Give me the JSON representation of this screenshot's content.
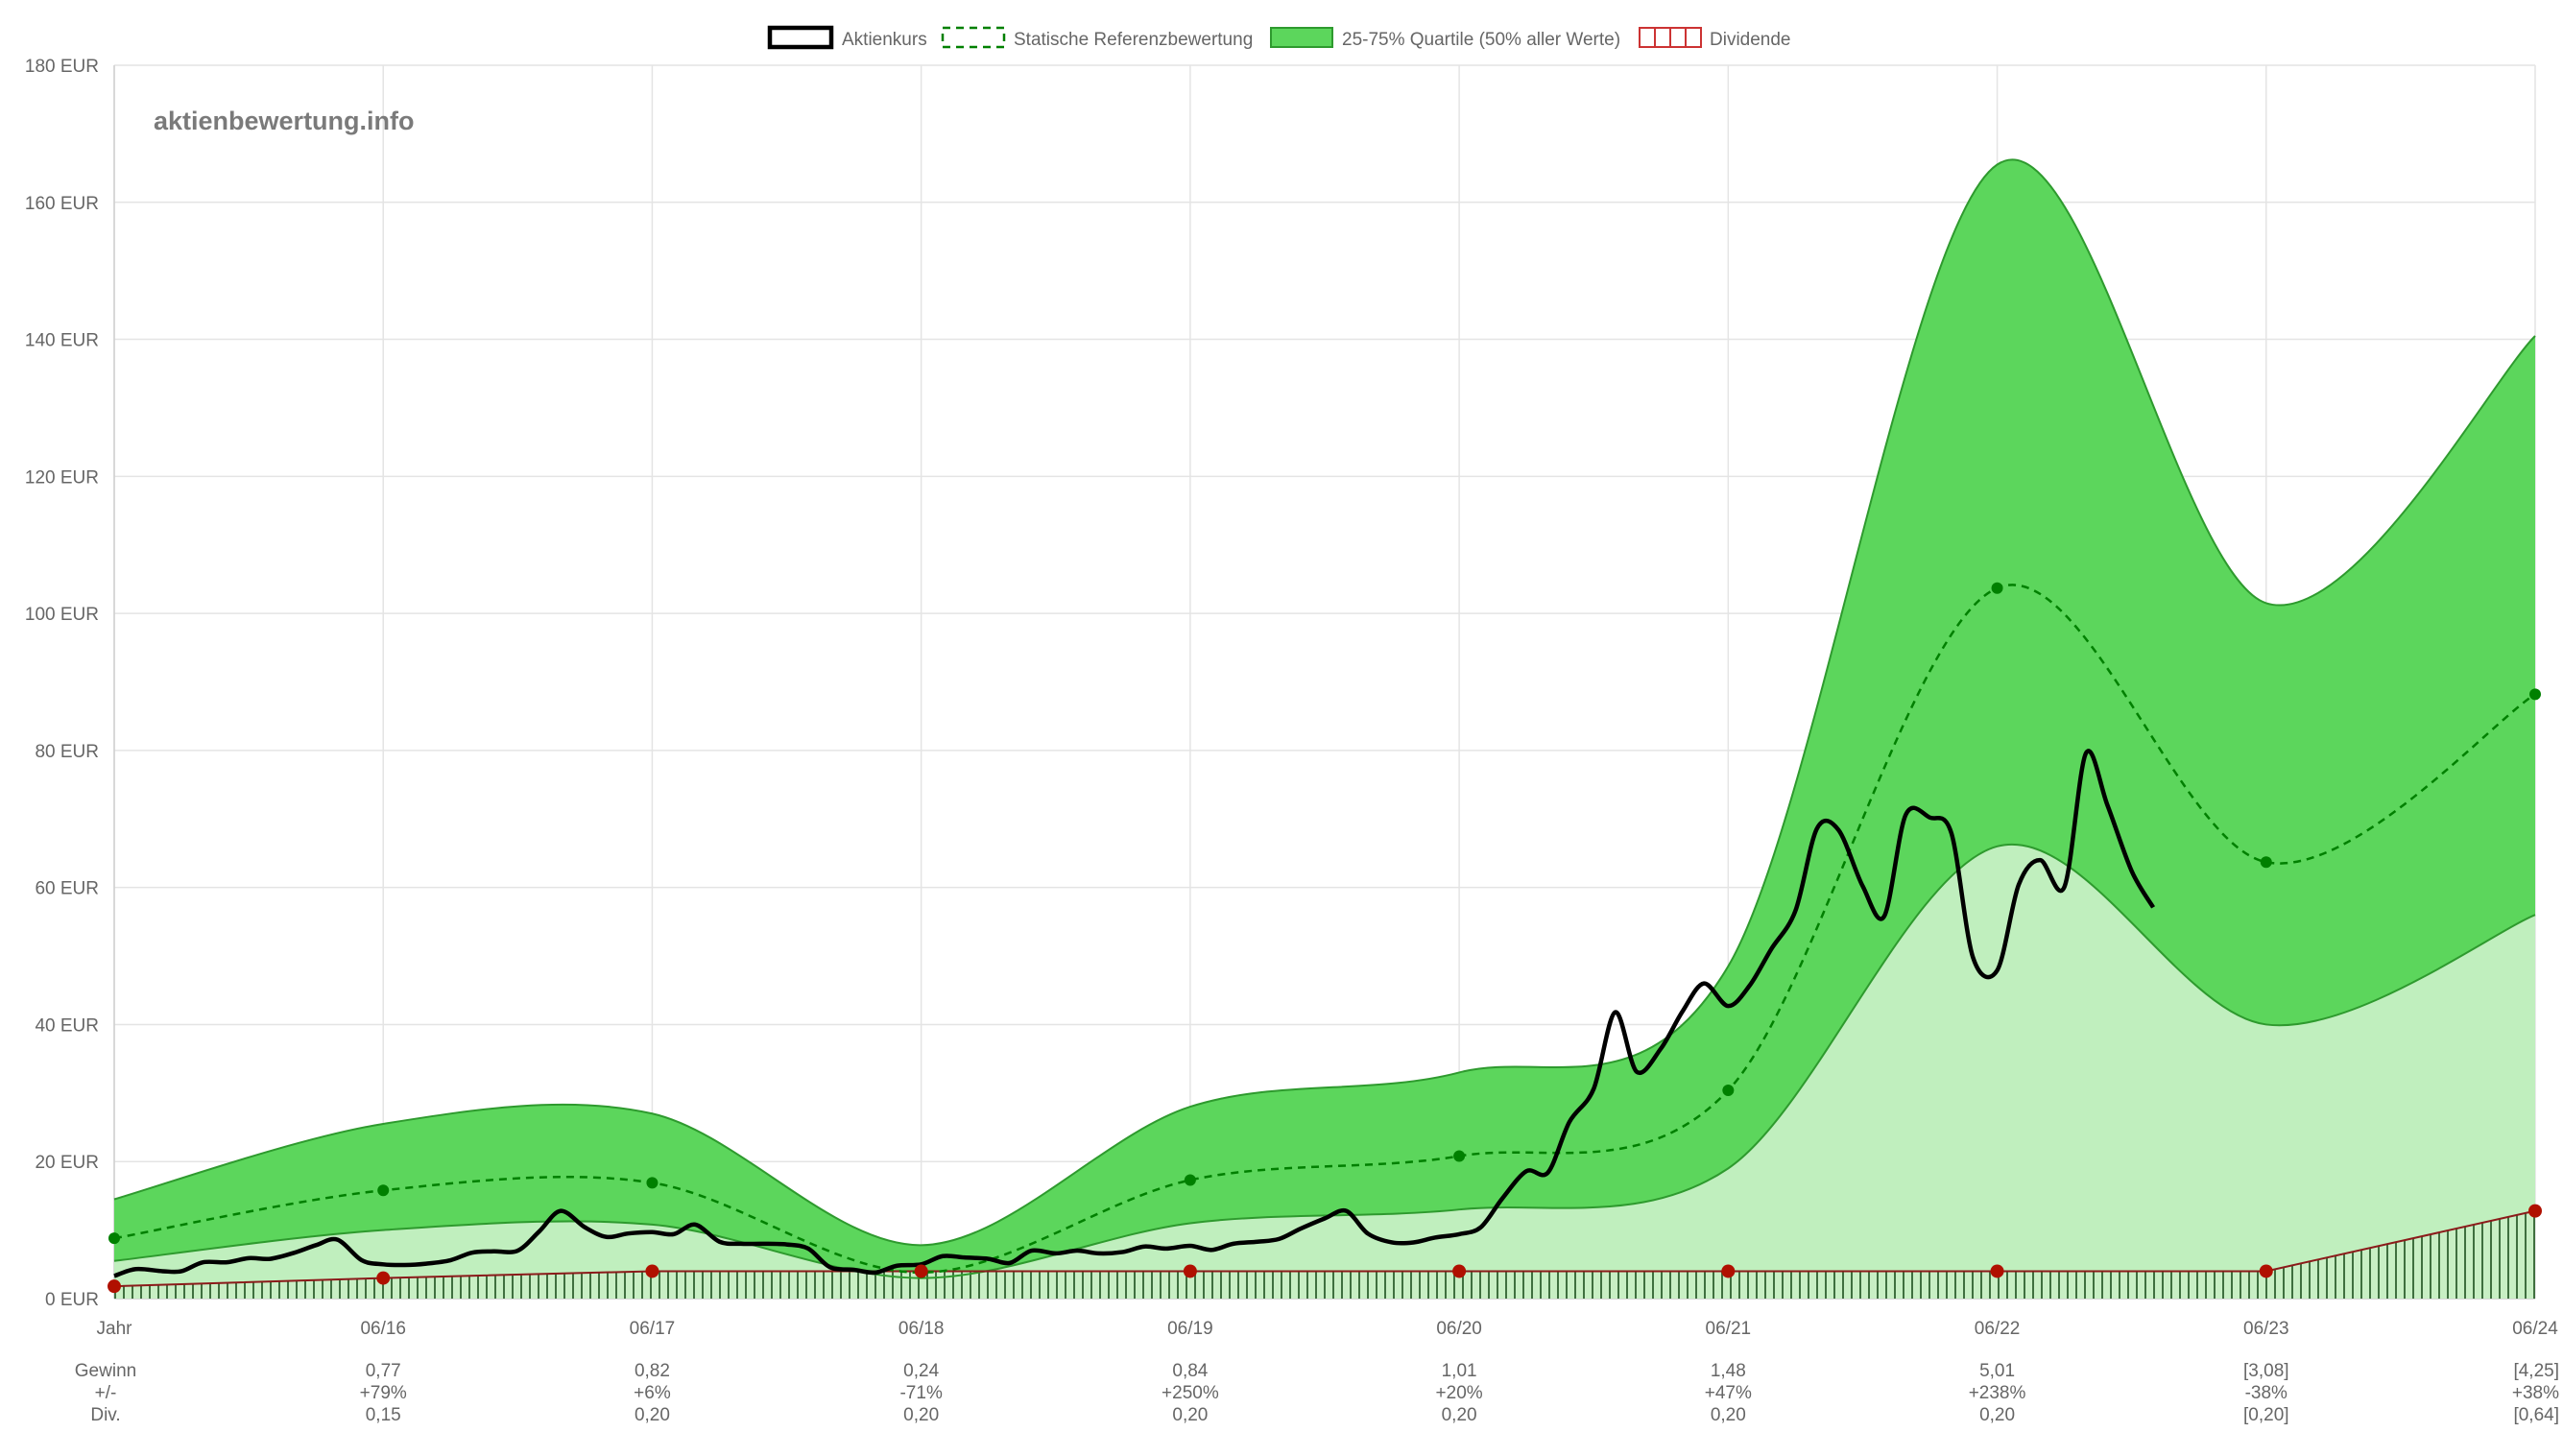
{
  "brand": "aktienbewertung.info",
  "legend": [
    {
      "key": "price",
      "label": "Aktienkurs",
      "style": "solid-black"
    },
    {
      "key": "reference",
      "label": "Statische Referenzbewertung",
      "style": "dashed-green"
    },
    {
      "key": "quartile",
      "label": "25-75% Quartile (50% aller Werte)",
      "style": "green-fill"
    },
    {
      "key": "dividend",
      "label": "Dividende",
      "style": "red-hatched"
    }
  ],
  "colors": {
    "price": "#000000",
    "reference": "#008000",
    "quartile_band": "#5cd65c",
    "quartile_border": "#2e9a2e",
    "lower_area": "#c0efbe",
    "dividend": "#8b1a1a",
    "dividend_dot": "#b01000",
    "grid": "#e4e4e4"
  },
  "table": {
    "row_labels": [
      "Gewinn",
      "+/-",
      "Div."
    ],
    "columns": [
      {
        "year": "Jahr",
        "gewinn": "",
        "change": "",
        "div": ""
      },
      {
        "year": "06/16",
        "gewinn": "0,77",
        "change": "+79%",
        "div": "0,15"
      },
      {
        "year": "06/17",
        "gewinn": "0,82",
        "change": "+6%",
        "div": "0,20"
      },
      {
        "year": "06/18",
        "gewinn": "0,24",
        "change": "-71%",
        "div": "0,20"
      },
      {
        "year": "06/19",
        "gewinn": "0,84",
        "change": "+250%",
        "div": "0,20"
      },
      {
        "year": "06/20",
        "gewinn": "1,01",
        "change": "+20%",
        "div": "0,20"
      },
      {
        "year": "06/21",
        "gewinn": "1,48",
        "change": "+47%",
        "div": "0,20"
      },
      {
        "year": "06/22",
        "gewinn": "5,01",
        "change": "+238%",
        "div": "0,20"
      },
      {
        "year": "06/23",
        "gewinn": "[3,08]",
        "change": "-38%",
        "div": "[0,20]"
      },
      {
        "year": "06/24",
        "gewinn": "[4,25]",
        "change": "+38%",
        "div": "[0,64]"
      }
    ]
  },
  "chart_data": {
    "type": "line",
    "categories": [
      "Jahr",
      "06/16",
      "06/17",
      "06/18",
      "06/19",
      "06/20",
      "06/21",
      "06/22",
      "06/23",
      "06/24"
    ],
    "y_ticks": [
      "0 EUR",
      "20 EUR",
      "40 EUR",
      "60 EUR",
      "80 EUR",
      "100 EUR",
      "120 EUR",
      "140 EUR",
      "160 EUR",
      "180 EUR"
    ],
    "ylim": [
      0,
      180
    ],
    "y_unit": "EUR",
    "grid": true,
    "legend_position": "top-center",
    "series": [
      {
        "name": "Statische Referenzbewertung",
        "type": "dashed-line",
        "values": [
          8.8,
          15.8,
          16.9,
          3.8,
          17.3,
          20.8,
          30.4,
          103.7,
          63.7,
          88.2
        ]
      },
      {
        "name": "25-75% Quartile (50% aller Werte)",
        "type": "band",
        "upper": [
          14.5,
          25.5,
          27.0,
          7.8,
          28.0,
          33.0,
          48.5,
          165.5,
          101.5,
          140.5
        ],
        "lower": [
          5.5,
          10.0,
          10.8,
          3.0,
          11.0,
          13.0,
          19.0,
          66.0,
          40.0,
          56.0
        ]
      },
      {
        "name": "Dividende",
        "type": "area",
        "values": [
          1.8,
          3.0,
          4.0,
          4.0,
          4.0,
          4.0,
          4.0,
          4.0,
          4.0,
          12.8
        ]
      },
      {
        "name": "Aktienkurs",
        "type": "line",
        "points": [
          [
            0.0,
            3.3
          ],
          [
            0.08,
            4.3
          ],
          [
            0.18,
            4.0
          ],
          [
            0.25,
            4.0
          ],
          [
            0.33,
            5.3
          ],
          [
            0.42,
            5.3
          ],
          [
            0.5,
            5.9
          ],
          [
            0.58,
            5.8
          ],
          [
            0.67,
            6.7
          ],
          [
            0.75,
            7.8
          ],
          [
            0.83,
            8.6
          ],
          [
            0.92,
            5.6
          ],
          [
            1.0,
            5.0
          ],
          [
            1.08,
            4.9
          ],
          [
            1.16,
            5.1
          ],
          [
            1.25,
            5.6
          ],
          [
            1.33,
            6.7
          ],
          [
            1.41,
            6.9
          ],
          [
            1.5,
            7.0
          ],
          [
            1.58,
            9.8
          ],
          [
            1.66,
            12.8
          ],
          [
            1.75,
            10.4
          ],
          [
            1.83,
            9.0
          ],
          [
            1.91,
            9.5
          ],
          [
            2.0,
            9.7
          ],
          [
            2.08,
            9.4
          ],
          [
            2.16,
            10.8
          ],
          [
            2.25,
            8.3
          ],
          [
            2.33,
            8.0
          ],
          [
            2.41,
            8.0
          ],
          [
            2.5,
            7.9
          ],
          [
            2.58,
            7.3
          ],
          [
            2.66,
            4.6
          ],
          [
            2.75,
            4.2
          ],
          [
            2.83,
            3.8
          ],
          [
            2.91,
            4.8
          ],
          [
            3.0,
            5.0
          ],
          [
            3.08,
            6.2
          ],
          [
            3.16,
            6.0
          ],
          [
            3.25,
            5.8
          ],
          [
            3.33,
            5.2
          ],
          [
            3.41,
            7.0
          ],
          [
            3.5,
            6.6
          ],
          [
            3.58,
            7.0
          ],
          [
            3.66,
            6.6
          ],
          [
            3.75,
            6.8
          ],
          [
            3.83,
            7.6
          ],
          [
            3.91,
            7.3
          ],
          [
            4.0,
            7.7
          ],
          [
            4.08,
            7.1
          ],
          [
            4.16,
            8.0
          ],
          [
            4.25,
            8.3
          ],
          [
            4.33,
            8.7
          ],
          [
            4.41,
            10.2
          ],
          [
            4.5,
            11.7
          ],
          [
            4.58,
            12.8
          ],
          [
            4.66,
            9.5
          ],
          [
            4.75,
            8.2
          ],
          [
            4.83,
            8.2
          ],
          [
            4.91,
            8.9
          ],
          [
            5.0,
            9.4
          ],
          [
            5.08,
            10.4
          ],
          [
            5.16,
            14.6
          ],
          [
            5.25,
            18.6
          ],
          [
            5.33,
            18.4
          ],
          [
            5.41,
            25.8
          ],
          [
            5.5,
            30.6
          ],
          [
            5.58,
            41.8
          ],
          [
            5.66,
            33.1
          ],
          [
            5.75,
            36.5
          ],
          [
            5.83,
            41.9
          ],
          [
            5.91,
            46.0
          ],
          [
            6.0,
            42.7
          ],
          [
            6.08,
            45.7
          ],
          [
            6.16,
            51.0
          ],
          [
            6.25,
            56.6
          ],
          [
            6.33,
            68.6
          ],
          [
            6.41,
            68.4
          ],
          [
            6.5,
            60.2
          ],
          [
            6.58,
            55.8
          ],
          [
            6.66,
            70.6
          ],
          [
            6.75,
            70.2
          ],
          [
            6.83,
            67.9
          ],
          [
            6.91,
            49.8
          ],
          [
            7.0,
            47.9
          ],
          [
            7.08,
            60.4
          ],
          [
            7.16,
            64.0
          ],
          [
            7.25,
            60.1
          ],
          [
            7.33,
            79.6
          ],
          [
            7.41,
            72.0
          ],
          [
            7.5,
            62.4
          ],
          [
            7.58,
            57.1
          ]
        ]
      }
    ]
  }
}
